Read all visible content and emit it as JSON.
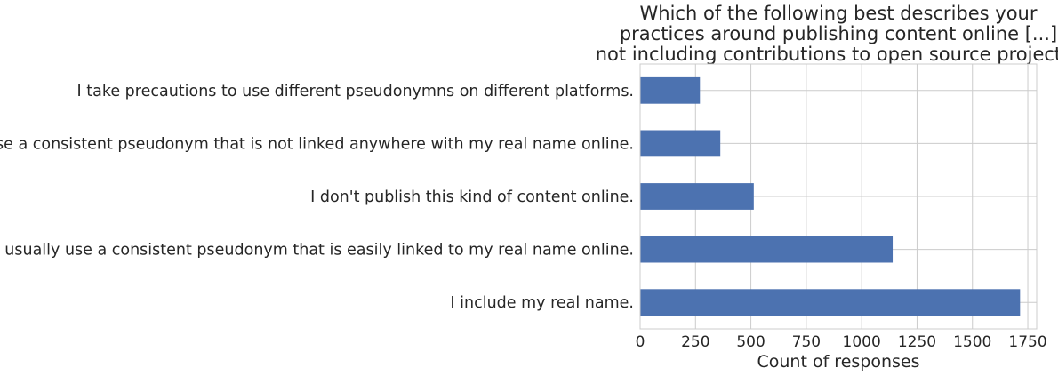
{
  "chart_data": {
    "type": "bar",
    "orientation": "horizontal",
    "title": [
      "Which of the following best describes your",
      "practices around publishing content online [...]",
      "not including contributions to open source projects?"
    ],
    "xlabel": "Count of responses",
    "ylabel": "",
    "categories": [
      "I take precautions to use different pseudonymns on different platforms.",
      "I usually use a consistent pseudonym that is not linked anywhere with my real name online.",
      "I don't publish this kind of content online.",
      "I usually use a consistent pseudonym that is easily linked to my real name online.",
      "I include my real name."
    ],
    "values": [
      270,
      362,
      513,
      1140,
      1715
    ],
    "xlim": [
      0,
      1790
    ],
    "xticks": [
      0,
      250,
      500,
      750,
      1000,
      1250,
      1500,
      1750
    ],
    "grid": true,
    "bar_color": "#4c72b0"
  }
}
